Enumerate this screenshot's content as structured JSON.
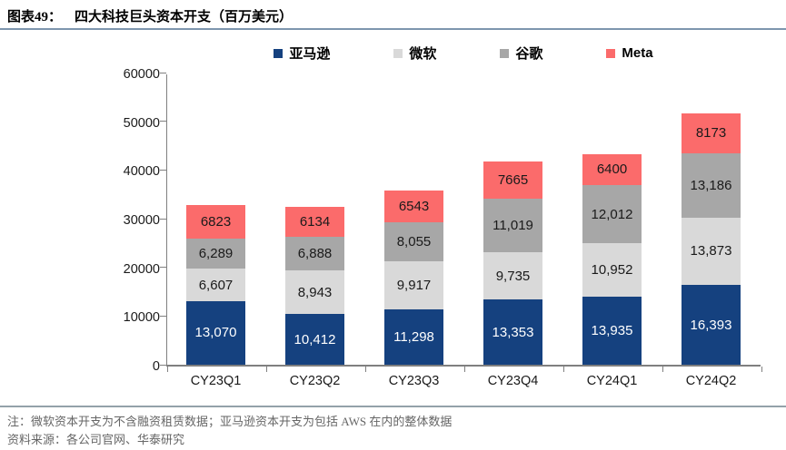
{
  "header": {
    "figure_label": "图表49：",
    "title": "四大科技巨头资本开支（百万美元）"
  },
  "chart_data": {
    "type": "bar",
    "stacked": true,
    "title": "四大科技巨头资本开支（百万美元）",
    "unit": "百万美元",
    "categories": [
      "CY23Q1",
      "CY23Q2",
      "CY23Q3",
      "CY23Q4",
      "CY24Q1",
      "CY24Q2"
    ],
    "series": [
      {
        "name": "亚马逊",
        "color": "#15417F",
        "label_color": "#FFFFFF",
        "values": [
          13070,
          10412,
          11298,
          13353,
          13935,
          16393
        ],
        "labels": [
          "13,070",
          "10,412",
          "11,298",
          "13,353",
          "13,935",
          "16,393"
        ]
      },
      {
        "name": "微软",
        "color": "#D9D9D9",
        "label_color": "#1a1a1a",
        "values": [
          6607,
          8943,
          9917,
          9735,
          10952,
          13873
        ],
        "labels": [
          "6,607",
          "8,943",
          "9,917",
          "9,735",
          "10,952",
          "13,873"
        ]
      },
      {
        "name": "谷歌",
        "color": "#A7A7A7",
        "label_color": "#1a1a1a",
        "values": [
          6289,
          6888,
          8055,
          11019,
          12012,
          13186
        ],
        "labels": [
          "6,289",
          "6,888",
          "8,055",
          "11,019",
          "12,012",
          "13,186"
        ]
      },
      {
        "name": "Meta",
        "color": "#FB6B6B",
        "label_color": "#1a1a1a",
        "values": [
          6823,
          6134,
          6543,
          7665,
          6400,
          8173
        ],
        "labels": [
          "6823",
          "6134",
          "6543",
          "7665",
          "6400",
          "8173"
        ]
      }
    ],
    "ylim": [
      0,
      60000
    ],
    "y_ticks": [
      "0",
      "10000",
      "20000",
      "30000",
      "40000",
      "50000",
      "60000"
    ],
    "grid": false,
    "legend_position": "top"
  },
  "footer": {
    "note": "注：微软资本开支为不含融资租赁数据；亚马逊资本开支为包括 AWS 在内的整体数据",
    "source": "资料来源：各公司官网、华泰研究"
  }
}
